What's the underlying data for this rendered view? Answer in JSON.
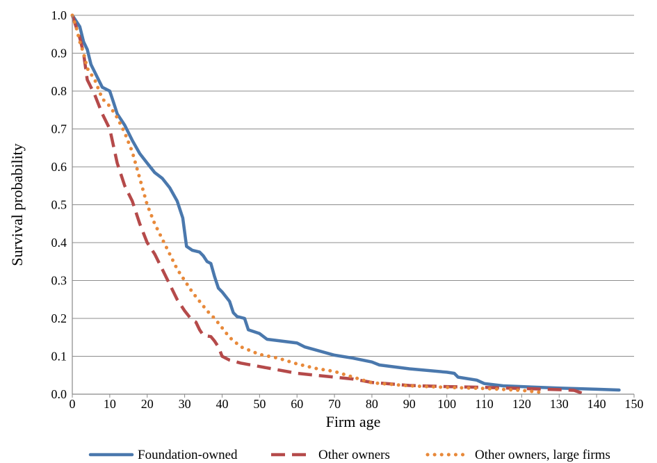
{
  "chart_data": {
    "type": "line",
    "title": "",
    "xlabel": "Firm age",
    "ylabel": "Survival probability",
    "xlim": [
      0,
      150
    ],
    "ylim": [
      0,
      1.0
    ],
    "x_ticks": [
      0,
      10,
      20,
      30,
      40,
      50,
      60,
      70,
      80,
      90,
      100,
      110,
      120,
      130,
      140,
      150
    ],
    "y_ticks": [
      0.0,
      0.1,
      0.2,
      0.3,
      0.4,
      0.5,
      0.6,
      0.7,
      0.8,
      0.9,
      1.0
    ],
    "y_tick_labels": [
      "0.0",
      "0.1",
      "0.2",
      "0.3",
      "0.4",
      "0.5",
      "0.6",
      "0.7",
      "0.8",
      "0.9",
      "1.0"
    ],
    "grid": "horizontal",
    "legend": "bottom",
    "series": [
      {
        "name": "Foundation-owned",
        "color": "#4a78ad",
        "style": "solid",
        "points": [
          [
            0,
            1.0
          ],
          [
            2,
            0.97
          ],
          [
            3,
            0.93
          ],
          [
            4,
            0.91
          ],
          [
            5,
            0.87
          ],
          [
            6,
            0.85
          ],
          [
            8,
            0.81
          ],
          [
            10,
            0.8
          ],
          [
            11,
            0.77
          ],
          [
            12,
            0.74
          ],
          [
            14,
            0.71
          ],
          [
            16,
            0.67
          ],
          [
            18,
            0.635
          ],
          [
            20,
            0.61
          ],
          [
            22,
            0.585
          ],
          [
            24,
            0.57
          ],
          [
            26,
            0.545
          ],
          [
            28,
            0.51
          ],
          [
            29.5,
            0.465
          ],
          [
            30.5,
            0.39
          ],
          [
            32,
            0.38
          ],
          [
            34,
            0.375
          ],
          [
            35,
            0.365
          ],
          [
            36,
            0.35
          ],
          [
            37,
            0.345
          ],
          [
            38,
            0.31
          ],
          [
            39,
            0.28
          ],
          [
            40,
            0.27
          ],
          [
            42,
            0.245
          ],
          [
            43,
            0.215
          ],
          [
            44,
            0.205
          ],
          [
            46,
            0.2
          ],
          [
            47,
            0.17
          ],
          [
            50,
            0.16
          ],
          [
            52,
            0.145
          ],
          [
            60,
            0.135
          ],
          [
            62,
            0.125
          ],
          [
            70,
            0.103
          ],
          [
            75,
            0.095
          ],
          [
            80,
            0.085
          ],
          [
            82,
            0.077
          ],
          [
            90,
            0.067
          ],
          [
            100,
            0.058
          ],
          [
            102,
            0.055
          ],
          [
            103,
            0.045
          ],
          [
            108,
            0.037
          ],
          [
            110,
            0.028
          ],
          [
            115,
            0.022
          ],
          [
            130,
            0.016
          ],
          [
            140,
            0.013
          ],
          [
            146,
            0.011
          ]
        ]
      },
      {
        "name": "Other owners",
        "color": "#b54a4a",
        "style": "dashed",
        "points": [
          [
            0,
            1.0
          ],
          [
            2,
            0.94
          ],
          [
            3,
            0.9
          ],
          [
            4,
            0.83
          ],
          [
            6,
            0.79
          ],
          [
            8,
            0.74
          ],
          [
            10,
            0.7
          ],
          [
            12,
            0.61
          ],
          [
            14,
            0.55
          ],
          [
            16,
            0.51
          ],
          [
            18,
            0.45
          ],
          [
            20,
            0.4
          ],
          [
            22,
            0.37
          ],
          [
            24,
            0.33
          ],
          [
            26,
            0.29
          ],
          [
            28,
            0.25
          ],
          [
            30,
            0.22
          ],
          [
            32,
            0.195
          ],
          [
            33,
            0.19
          ],
          [
            34,
            0.17
          ],
          [
            35,
            0.155
          ],
          [
            37,
            0.152
          ],
          [
            38,
            0.14
          ],
          [
            39,
            0.125
          ],
          [
            40,
            0.1
          ],
          [
            42,
            0.09
          ],
          [
            45,
            0.082
          ],
          [
            50,
            0.073
          ],
          [
            60,
            0.055
          ],
          [
            70,
            0.045
          ],
          [
            75,
            0.04
          ],
          [
            80,
            0.031
          ],
          [
            85,
            0.027
          ],
          [
            90,
            0.023
          ],
          [
            100,
            0.02
          ],
          [
            110,
            0.018
          ],
          [
            120,
            0.015
          ],
          [
            130,
            0.012
          ],
          [
            134,
            0.01
          ],
          [
            136,
            0.003
          ]
        ]
      },
      {
        "name": "Other owners, large firms",
        "color": "#e8893a",
        "style": "dotted",
        "points": [
          [
            0,
            1.0
          ],
          [
            1,
            0.97
          ],
          [
            2,
            0.93
          ],
          [
            3,
            0.9
          ],
          [
            4,
            0.86
          ],
          [
            6,
            0.83
          ],
          [
            8,
            0.78
          ],
          [
            10,
            0.76
          ],
          [
            12,
            0.73
          ],
          [
            14,
            0.69
          ],
          [
            16,
            0.64
          ],
          [
            18,
            0.57
          ],
          [
            20,
            0.5
          ],
          [
            22,
            0.45
          ],
          [
            24,
            0.41
          ],
          [
            26,
            0.37
          ],
          [
            28,
            0.33
          ],
          [
            30,
            0.3
          ],
          [
            32,
            0.27
          ],
          [
            34,
            0.245
          ],
          [
            36,
            0.22
          ],
          [
            38,
            0.2
          ],
          [
            40,
            0.175
          ],
          [
            42,
            0.15
          ],
          [
            45,
            0.125
          ],
          [
            50,
            0.105
          ],
          [
            55,
            0.095
          ],
          [
            60,
            0.08
          ],
          [
            65,
            0.068
          ],
          [
            70,
            0.06
          ],
          [
            75,
            0.045
          ],
          [
            80,
            0.03
          ],
          [
            90,
            0.022
          ],
          [
            100,
            0.018
          ],
          [
            110,
            0.015
          ],
          [
            120,
            0.01
          ],
          [
            125,
            0.005
          ]
        ]
      }
    ]
  }
}
